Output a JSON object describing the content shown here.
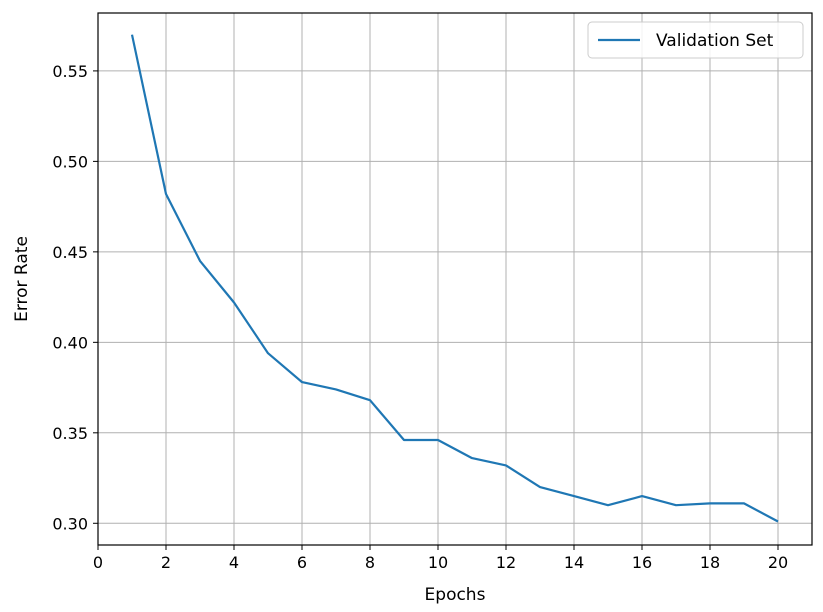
{
  "chart_data": {
    "type": "line",
    "title": "",
    "xlabel": "Epochs",
    "ylabel": "Error Rate",
    "xlim": [
      0,
      21
    ],
    "ylim": [
      0.288,
      0.582
    ],
    "x_ticks": [
      0,
      2,
      4,
      6,
      8,
      10,
      12,
      14,
      16,
      18,
      20
    ],
    "y_ticks": [
      0.3,
      0.35,
      0.4,
      0.45,
      0.5,
      0.55
    ],
    "x_tick_labels": [
      "0",
      "2",
      "4",
      "6",
      "8",
      "10",
      "12",
      "14",
      "16",
      "18",
      "20"
    ],
    "y_tick_labels": [
      "0.30",
      "0.35",
      "0.40",
      "0.45",
      "0.50",
      "0.55"
    ],
    "grid": true,
    "legend_position": "top-right",
    "series": [
      {
        "name": "Validation Set",
        "color": "#1f77b4",
        "x": [
          1,
          2,
          3,
          4,
          5,
          6,
          7,
          8,
          9,
          10,
          11,
          12,
          13,
          14,
          15,
          16,
          17,
          18,
          19,
          20
        ],
        "y": [
          0.57,
          0.482,
          0.445,
          0.422,
          0.394,
          0.378,
          0.374,
          0.368,
          0.346,
          0.346,
          0.336,
          0.332,
          0.32,
          0.315,
          0.31,
          0.315,
          0.31,
          0.311,
          0.311,
          0.301
        ]
      }
    ]
  }
}
